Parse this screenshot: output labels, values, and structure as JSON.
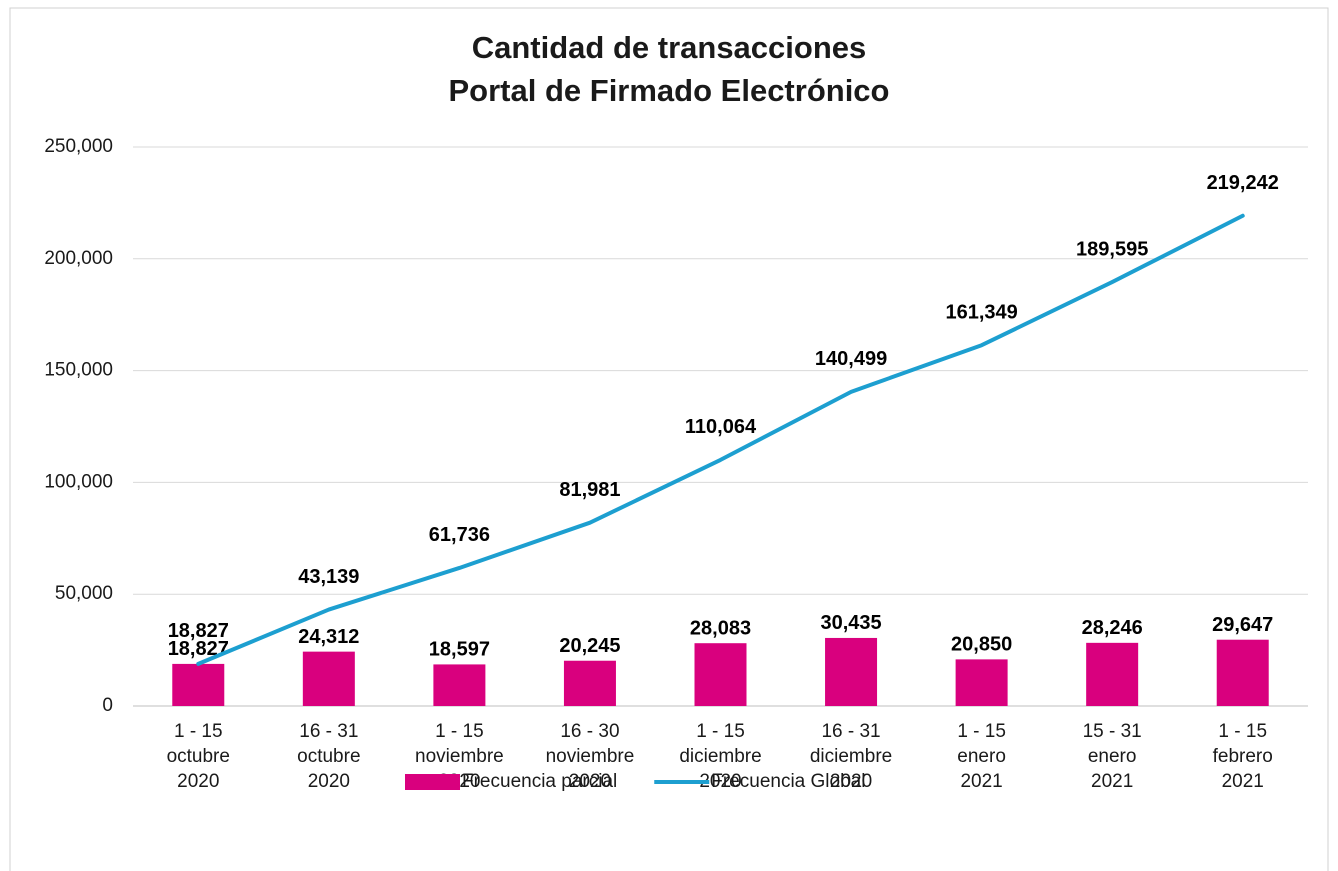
{
  "chart_data": {
    "type": "bar-line",
    "title": "Cantidad de transacciones",
    "subtitle": "Portal de Firmado Electrónico",
    "categories": [
      [
        "1 - 15",
        "octubre",
        "2020"
      ],
      [
        "16 - 31",
        "octubre",
        "2020"
      ],
      [
        "1 - 15",
        "noviembre",
        "2020"
      ],
      [
        "16 - 30",
        "noviembre",
        "2020"
      ],
      [
        "1 - 15",
        "diciembre",
        "2020"
      ],
      [
        "16 - 31",
        "diciembre",
        "2020"
      ],
      [
        "1 - 15",
        "enero",
        "2021"
      ],
      [
        "15 - 31",
        "enero",
        "2021"
      ],
      [
        "1 - 15",
        "febrero",
        "2021"
      ]
    ],
    "series": [
      {
        "name": "Frecuencia parcial",
        "type": "bar",
        "color": "#d9007e",
        "values": [
          18827,
          24312,
          18597,
          20245,
          28083,
          30435,
          20850,
          28246,
          29647
        ],
        "value_labels": [
          "18,827",
          "24,312",
          "18,597",
          "20,245",
          "28,083",
          "30,435",
          "20,850",
          "28,246",
          "29,647"
        ]
      },
      {
        "name": "Frecuencia Global",
        "type": "line",
        "color": "#1d9fd0",
        "values": [
          18827,
          43139,
          61736,
          81981,
          110064,
          140499,
          161349,
          189595,
          219242
        ],
        "value_labels": [
          "18,827",
          "43,139",
          "61,736",
          "81,981",
          "110,064",
          "140,499",
          "161,349",
          "189,595",
          "219,242"
        ]
      }
    ],
    "ylim": [
      0,
      250000
    ],
    "yticks": [
      0,
      {
        "value": 50000,
        "label": "50,000"
      },
      {
        "value": 100000,
        "label": "100,000"
      },
      {
        "value": 150000,
        "label": "150,000"
      },
      {
        "value": 200000,
        "label": "200,000"
      },
      {
        "value": 250000,
        "label": "250,000"
      }
    ],
    "grid": true,
    "legend": "bottom"
  }
}
